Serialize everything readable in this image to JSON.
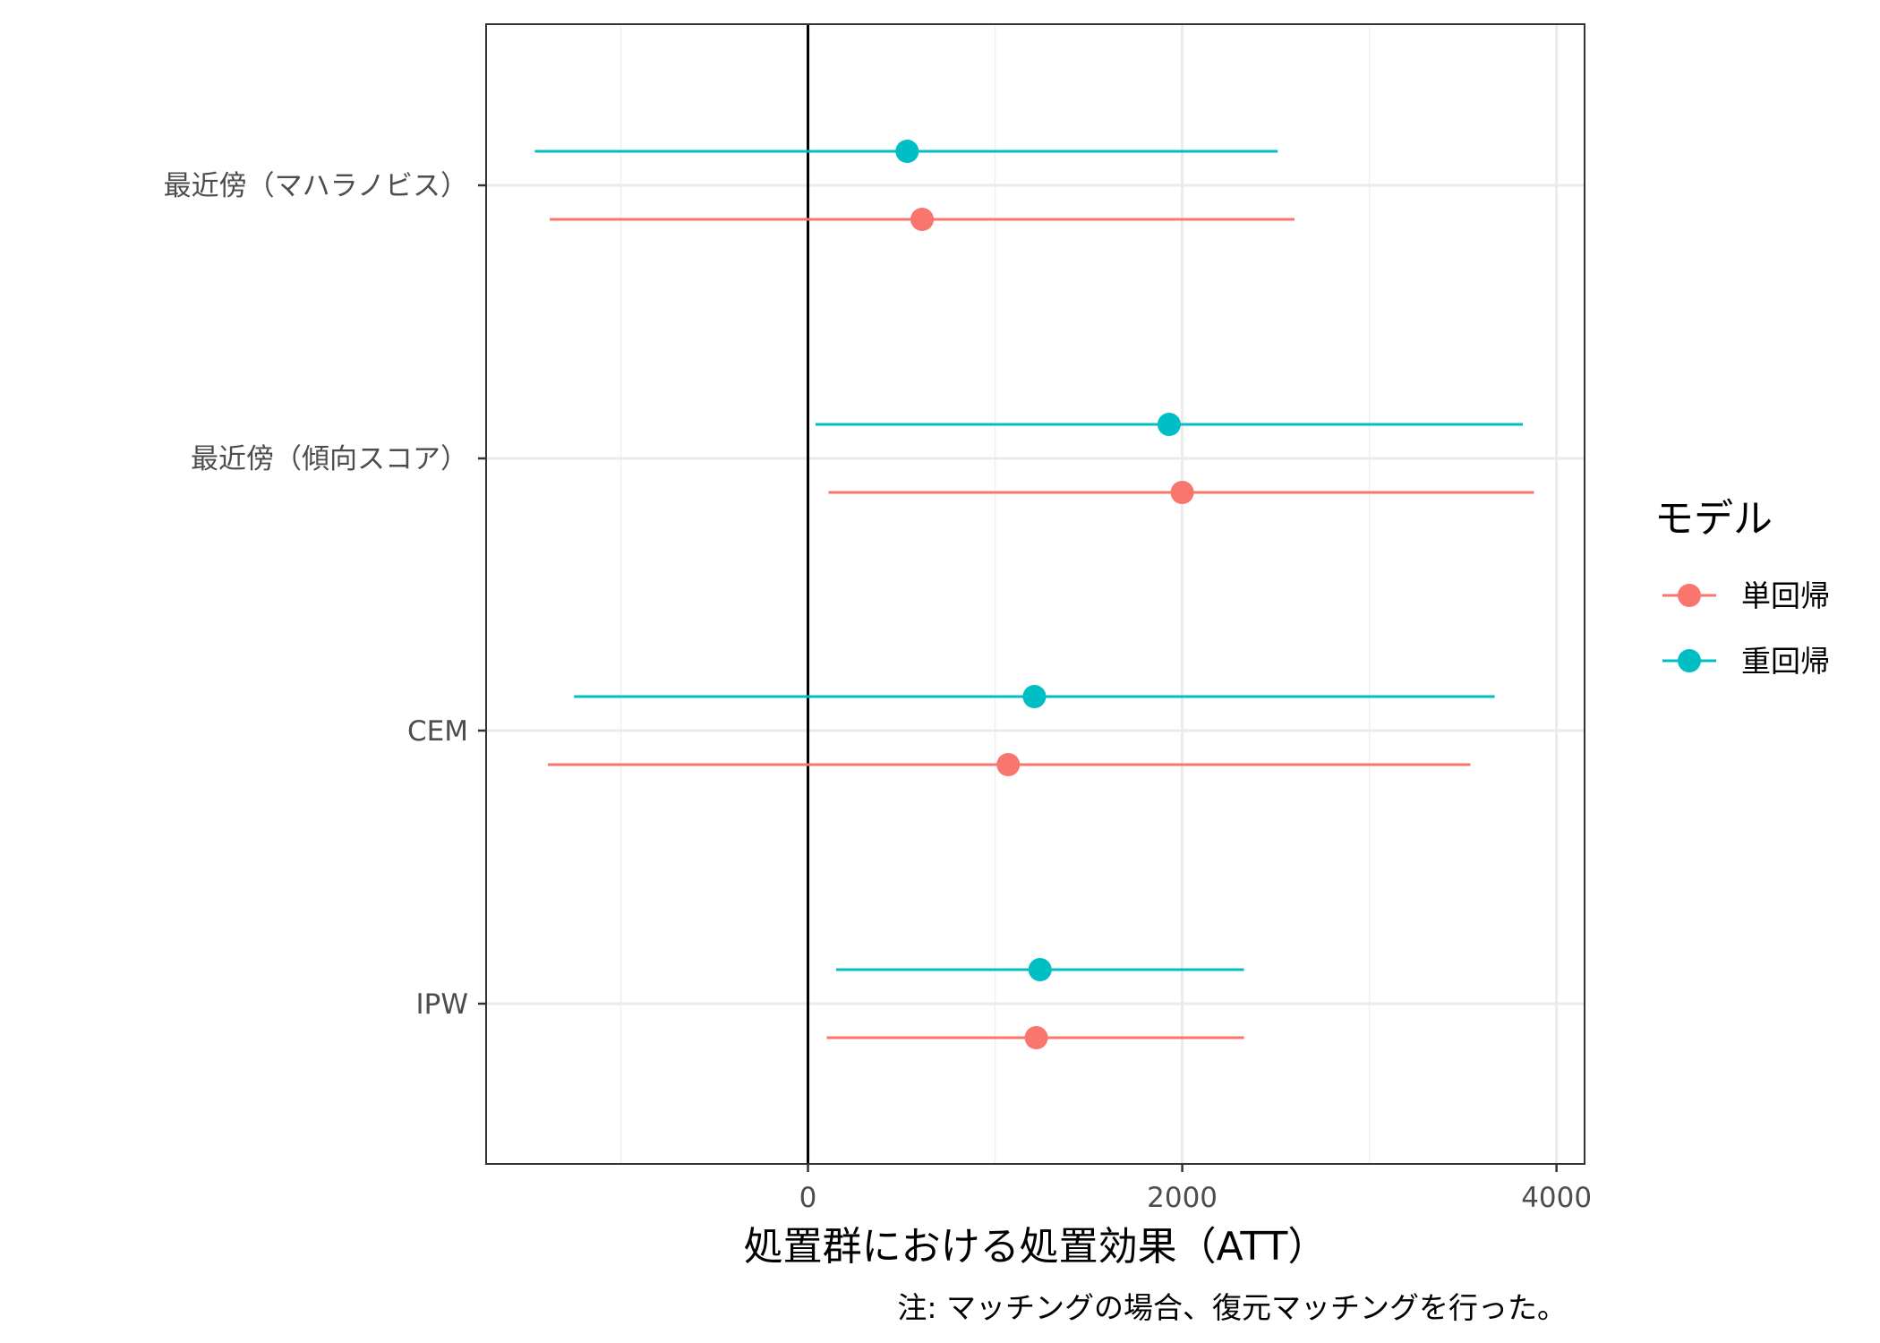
{
  "chart_data": {
    "type": "forest",
    "xlabel": "処置群における処置効果（ATT）",
    "caption": "注: マッチングの場合、復元マッチングを行った。",
    "xlim": [
      -1720,
      4150
    ],
    "x_ticks": [
      0,
      2000,
      4000
    ],
    "x_minor_gridlines": [
      -1000,
      1000,
      3000
    ],
    "reference_line_x": 0,
    "grid": true,
    "legend": {
      "title": "モデル",
      "position": "right"
    },
    "categories": [
      "最近傍（マハラノビス）",
      "最近傍（傾向スコア）",
      "CEM",
      "IPW"
    ],
    "series": [
      {
        "name": "単回帰",
        "color": "#F8766D",
        "points": [
          {
            "category": "最近傍（マハラノビス）",
            "estimate": 610,
            "lower": -1380,
            "upper": 2600
          },
          {
            "category": "最近傍（傾向スコア）",
            "estimate": 2000,
            "lower": 110,
            "upper": 3880
          },
          {
            "category": "CEM",
            "estimate": 1070,
            "lower": -1390,
            "upper": 3540
          },
          {
            "category": "IPW",
            "estimate": 1220,
            "lower": 100,
            "upper": 2330
          }
        ]
      },
      {
        "name": "重回帰",
        "color": "#00BFC4",
        "points": [
          {
            "category": "最近傍（マハラノビス）",
            "estimate": 530,
            "lower": -1460,
            "upper": 2510
          },
          {
            "category": "最近傍（傾向スコア）",
            "estimate": 1930,
            "lower": 40,
            "upper": 3820
          },
          {
            "category": "CEM",
            "estimate": 1210,
            "lower": -1250,
            "upper": 3670
          },
          {
            "category": "IPW",
            "estimate": 1240,
            "lower": 150,
            "upper": 2330
          }
        ]
      }
    ]
  }
}
